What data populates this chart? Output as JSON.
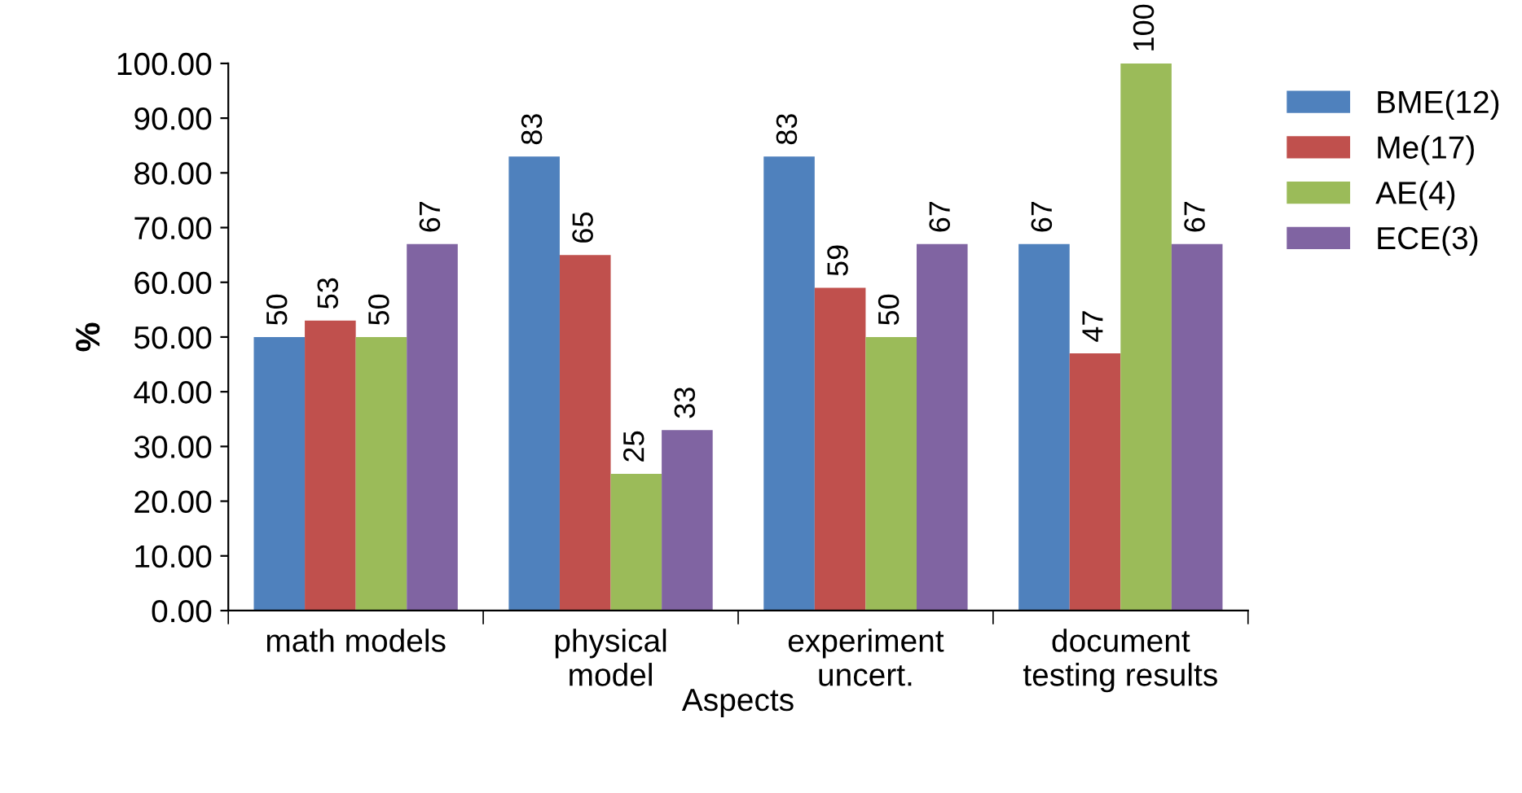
{
  "chart_data": {
    "type": "bar",
    "xlabel": "Aspects",
    "ylabel": "%",
    "categories": [
      "math models",
      "physical\nmodel",
      "experiment\nuncert.",
      "document\ntesting results"
    ],
    "series": [
      {
        "name": "BME(12)",
        "color": "#4f81bd",
        "values": [
          50,
          83,
          83,
          67
        ]
      },
      {
        "name": "Me(17)",
        "color": "#c0504d",
        "values": [
          53,
          65,
          59,
          47
        ]
      },
      {
        "name": "AE(4)",
        "color": "#9bbb59",
        "values": [
          50,
          25,
          50,
          100
        ]
      },
      {
        "name": "ECE(3)",
        "color": "#8064a2",
        "values": [
          67,
          33,
          67,
          67
        ]
      }
    ],
    "ylim": [
      0,
      100
    ],
    "yticks": [
      {
        "value": 0,
        "label": "0.00"
      },
      {
        "value": 10,
        "label": "10.00"
      },
      {
        "value": 20,
        "label": "20.00"
      },
      {
        "value": 30,
        "label": "30.00"
      },
      {
        "value": 40,
        "label": "40.00"
      },
      {
        "value": 50,
        "label": "50.00"
      },
      {
        "value": 60,
        "label": "60.00"
      },
      {
        "value": 70,
        "label": "70.00"
      },
      {
        "value": 80,
        "label": "80.00"
      },
      {
        "value": 90,
        "label": "90.00"
      },
      {
        "value": 100,
        "label": "100.00"
      }
    ],
    "data_labels": true,
    "grid": false,
    "legend": "right"
  }
}
